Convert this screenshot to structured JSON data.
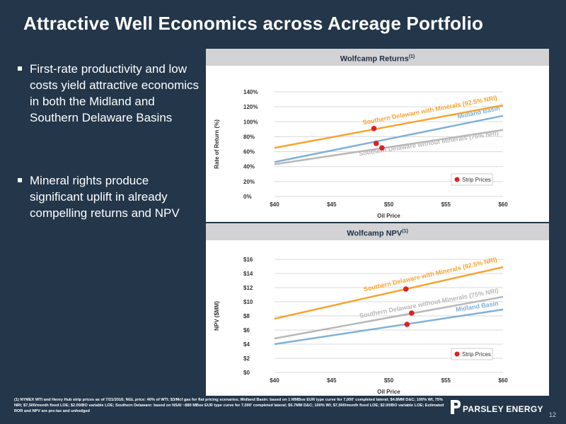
{
  "title": "Attractive Well Economics across Acreage Portfolio",
  "bullets": [
    "First-rate productivity and low costs yield attractive economics in both the Midland and Southern Delaware Basins",
    "Mineral rights produce significant uplift in already compelling returns and NPV"
  ],
  "colors": {
    "background": "#23364a",
    "orange": "#f5a42f",
    "blue": "#7fb1d8",
    "gray": "#b8b8b8",
    "strip": "#e01f26"
  },
  "chart_data": [
    {
      "type": "line",
      "title": "Wolfcamp Returns",
      "title_sup": "(1)",
      "xlabel": "Oil Price",
      "ylabel": "Rate of Return (%)",
      "x_ticks": [
        "$40",
        "$45",
        "$50",
        "$55",
        "$60"
      ],
      "x_range": [
        40,
        60
      ],
      "y_ticks": [
        "0%",
        "20%",
        "40%",
        "60%",
        "80%",
        "100%",
        "120%",
        "140%"
      ],
      "y_range": [
        0,
        140
      ],
      "grid": true,
      "series": [
        {
          "name": "Southern Delaware with Minerals (92.5% NRI)",
          "color": "#f5a42f",
          "x": [
            40,
            60
          ],
          "y": [
            65,
            122
          ]
        },
        {
          "name": "Midland Basin",
          "color": "#7fb1d8",
          "x": [
            40,
            60
          ],
          "y": [
            46,
            108
          ]
        },
        {
          "name": "Southern Delaware without Minerals (75% NRI)",
          "color": "#b8b8b8",
          "x": [
            40,
            60
          ],
          "y": [
            43,
            89
          ]
        }
      ],
      "strip_points": [
        {
          "x": 48.7,
          "y": 91
        },
        {
          "x": 48.9,
          "y": 71
        },
        {
          "x": 49.4,
          "y": 65
        }
      ],
      "legend": {
        "label": "Strip Prices",
        "position": "bottom-right"
      }
    },
    {
      "type": "line",
      "title": "Wolfcamp NPV",
      "title_sup": "(1)",
      "xlabel": "Oil Price",
      "ylabel": "NPV ($MM)",
      "x_ticks": [
        "$40",
        "$45",
        "$50",
        "$55",
        "$60"
      ],
      "x_range": [
        40,
        60
      ],
      "y_ticks": [
        "$0",
        "$2",
        "$4",
        "$6",
        "$8",
        "$10",
        "$12",
        "$14",
        "$16"
      ],
      "y_range": [
        0,
        16
      ],
      "grid": true,
      "series": [
        {
          "name": "Southern Delaware with Minerals (92.5% NRI)",
          "color": "#f5a42f",
          "x": [
            40,
            60
          ],
          "y": [
            7.6,
            14.9
          ]
        },
        {
          "name": "Southern Delaware without Minerals (75% NRI)",
          "color": "#b8b8b8",
          "x": [
            40,
            60
          ],
          "y": [
            4.8,
            10.7
          ]
        },
        {
          "name": "Midland Basin",
          "color": "#7fb1d8",
          "x": [
            40,
            60
          ],
          "y": [
            4.0,
            8.9
          ]
        }
      ],
      "strip_points": [
        {
          "x": 51.5,
          "y": 11.8
        },
        {
          "x": 52.0,
          "y": 8.4
        },
        {
          "x": 51.6,
          "y": 6.8
        }
      ],
      "legend": {
        "label": "Strip Prices",
        "position": "bottom-right"
      }
    }
  ],
  "footnote": "(1) NYMEX WTI and Henry Hub strip prices as of 7/21/2016; NGL price: 40% of WTI; $3/Mcf gas for flat pricing scenarios; Midland Basin: based on 1 MMBoe EUR type curve for 7,000' completed lateral; $4.8MM D&C; 100% WI, 75% NRI; $7,500/month fixed LOE; $2.00/BO variable LOE; Southern Delaware: based on NSAI ~880 MBoe EUR type curve for 7,000' completed lateral; $5.7MM D&C; 100% WI; $7,500/month fixed LOE; $2.00/BO variable LOE; Estimated ROR and NPV are pre-tax and unhedged",
  "logo": {
    "text": "PARSLEY ENERGY",
    "icon": "parsley-p-icon"
  },
  "page_number": "12"
}
